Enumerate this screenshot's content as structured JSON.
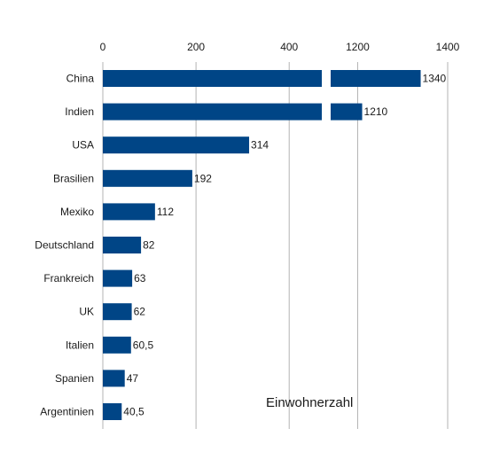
{
  "chart_data": {
    "type": "bar",
    "orientation": "horizontal",
    "axis_break": true,
    "xlabel": "Einwohnerzahl",
    "xlim_left": [
      0,
      470
    ],
    "xlim_right": [
      1140,
      1400
    ],
    "xticks_left": [
      "0",
      "200",
      "400"
    ],
    "xticks_right": [
      "1200",
      "1400"
    ],
    "categories": [
      "China",
      "Indien",
      "USA",
      "Brasilien",
      "Mexiko",
      "Deutschland",
      "Frankreich",
      "UK",
      "Italien",
      "Spanien",
      "Argentinien"
    ],
    "values": [
      1340,
      1210,
      314,
      192,
      112,
      82,
      63,
      62,
      60.5,
      47,
      40.5
    ],
    "value_labels": [
      "1340",
      "1210",
      "314",
      "192",
      "112",
      "82",
      "63",
      "62",
      "60,5",
      "47",
      "40,5"
    ],
    "bar_color": "#004586",
    "grid": true
  }
}
